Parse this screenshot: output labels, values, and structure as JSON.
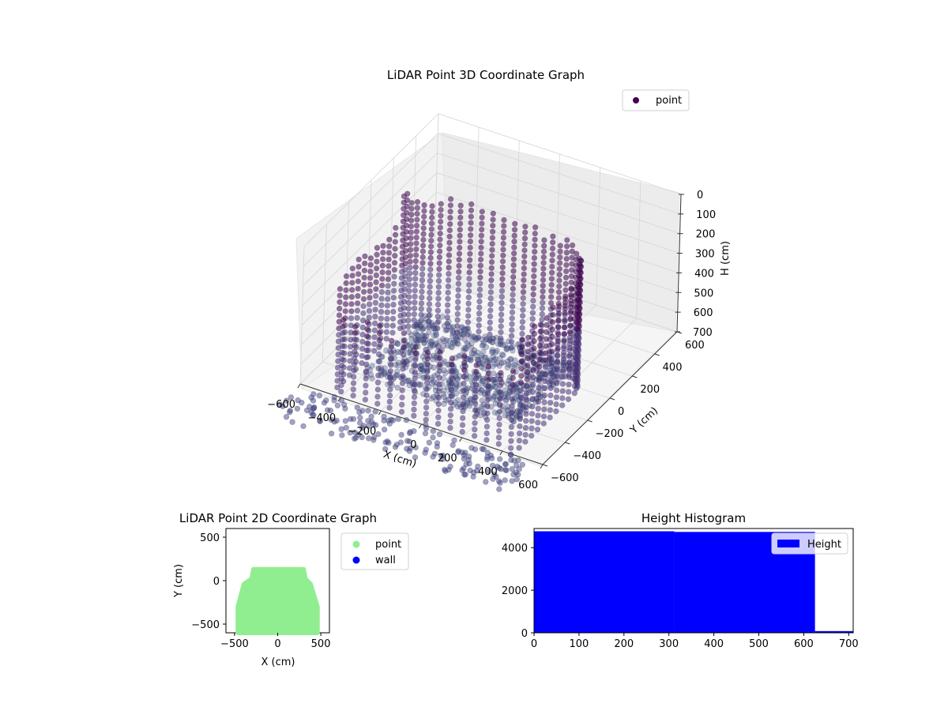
{
  "chart_data": [
    {
      "type": "scatter",
      "subtype": "3d",
      "title": "LiDAR Point 3D Coordinate Graph",
      "xlabel": "X (cm)",
      "ylabel": "Y (cm)",
      "zlabel": "H (cm)",
      "xlim": [
        -600,
        600
      ],
      "ylim": [
        -600,
        600
      ],
      "zlim": [
        0,
        700
      ],
      "z_inverted": true,
      "xticks": [
        "−600",
        "−400",
        "−200",
        "0",
        "200",
        "400",
        "600"
      ],
      "yticks": [
        "−600",
        "−400",
        "−200",
        "0",
        "200",
        "400",
        "600"
      ],
      "zticks": [
        "0",
        "100",
        "200",
        "300",
        "400",
        "500",
        "600",
        "700"
      ],
      "legend": [
        {
          "label": "point",
          "color": "#440154"
        }
      ],
      "legend_position": "top-right",
      "colormap": "viridis",
      "grid": true,
      "description_of_shape": "dense ring of vertical point columns forming walls around a floor region (x -450..450, y -550..150), scattered sparse points in foreground"
    },
    {
      "type": "scatter",
      "title": "LiDAR Point 2D Coordinate Graph",
      "xlabel": "X (cm)",
      "ylabel": "Y (cm)",
      "xlim": [
        -600,
        600
      ],
      "ylim": [
        -600,
        600
      ],
      "xticks": [
        "−500",
        "0",
        "500"
      ],
      "yticks": [
        "−500",
        "0",
        "500"
      ],
      "series": [
        {
          "name": "point",
          "color": "#90ee90",
          "shape_outline": [
            [
              -460,
              -600
            ],
            [
              -460,
              -300
            ],
            [
              -390,
              -40
            ],
            [
              -300,
              20
            ],
            [
              -280,
              130
            ],
            [
              300,
              130
            ],
            [
              320,
              20
            ],
            [
              380,
              -40
            ],
            [
              460,
              -300
            ],
            [
              460,
              -600
            ]
          ]
        },
        {
          "name": "wall",
          "color": "#0000ff"
        }
      ],
      "legend_position": "outside-right",
      "grid": false
    },
    {
      "type": "bar",
      "subtype": "histogram",
      "title": "Height Histogram",
      "xlim": [
        0,
        710
      ],
      "ylim": [
        0,
        4900
      ],
      "xticks": [
        "0",
        "100",
        "200",
        "300",
        "400",
        "500",
        "600",
        "700"
      ],
      "yticks": [
        "0",
        "2000",
        "4000"
      ],
      "series": [
        {
          "name": "Height",
          "color": "#0000ff",
          "bins": [
            {
              "x0": 0,
              "x1": 312,
              "value": 4770
            },
            {
              "x0": 312,
              "x1": 625,
              "value": 4740
            },
            {
              "x0": 625,
              "x1": 710,
              "value": 80
            }
          ]
        }
      ],
      "legend_position": "top-right",
      "grid": false
    }
  ]
}
